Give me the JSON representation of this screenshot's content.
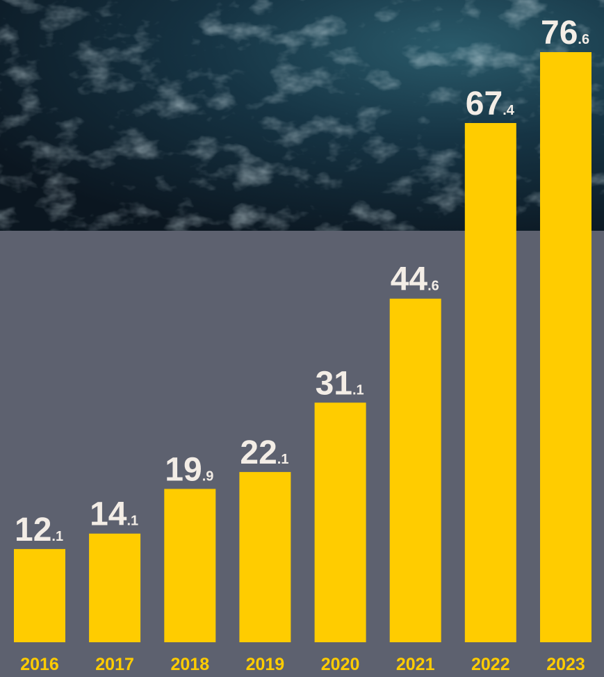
{
  "colors": {
    "bar": "#ffcc00",
    "value_label": "#f3ede6",
    "year_label": "#ffcc00",
    "panel": "#5d616f",
    "ocean_dark": "#0d1a24",
    "ocean_mid": "#1e4353",
    "foam": "#cfe7ef"
  },
  "chart_data": {
    "type": "bar",
    "categories": [
      "2016",
      "2017",
      "2018",
      "2019",
      "2020",
      "2021",
      "2022",
      "2023"
    ],
    "values": [
      12.1,
      14.1,
      19.9,
      22.1,
      31.1,
      44.6,
      67.4,
      76.6
    ],
    "value_labels": [
      {
        "int": "12",
        "dec": ".1"
      },
      {
        "int": "14",
        "dec": ".1"
      },
      {
        "int": "19",
        "dec": ".9"
      },
      {
        "int": "22",
        "dec": ".1"
      },
      {
        "int": "31",
        "dec": ".1"
      },
      {
        "int": "44",
        "dec": ".6"
      },
      {
        "int": "67",
        "dec": ".4"
      },
      {
        "int": "76",
        "dec": ".6"
      }
    ],
    "title": "",
    "xlabel": "",
    "ylabel": "",
    "ylim": [
      0,
      76.6
    ],
    "grid": false,
    "legend": "none"
  }
}
